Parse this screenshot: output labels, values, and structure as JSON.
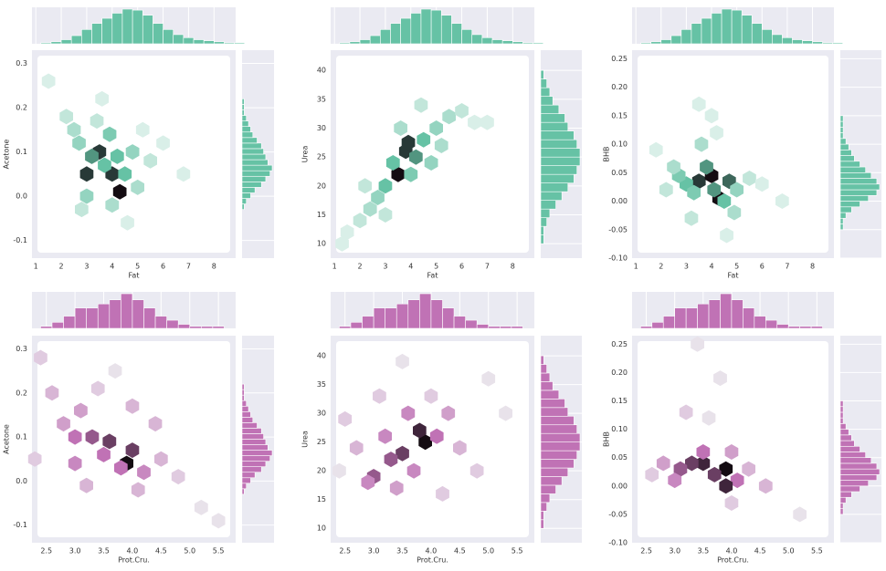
{
  "chart_data": [
    {
      "type": "hexbin",
      "xlabel": "Fat",
      "ylabel": "Acetone",
      "color": "#66c2a5",
      "xlim": [
        0.85,
        8.85
      ],
      "ylim": [
        -0.14,
        0.33
      ],
      "xticks": [
        1,
        2,
        3,
        4,
        5,
        6,
        7,
        8
      ],
      "yticks": [
        -0.1,
        {
          "value": 0,
          "label": "0.0"
        },
        0.1,
        0.2,
        0.3
      ],
      "hexbins": {
        "x": [
          3.0,
          3.5,
          4.0,
          4.3,
          3.2,
          3.7,
          4.5,
          2.7,
          3.9,
          4.2,
          2.5,
          3.0,
          4.8,
          5.0,
          2.2,
          3.4,
          4.0,
          5.5,
          6.0,
          1.5,
          2.8,
          4.6,
          3.6,
          5.2,
          6.8
        ],
        "y": [
          0.05,
          0.1,
          0.05,
          0.01,
          0.09,
          0.07,
          0.05,
          0.12,
          0.14,
          0.09,
          0.15,
          0.0,
          0.1,
          0.02,
          0.18,
          0.17,
          -0.02,
          0.08,
          0.12,
          0.26,
          -0.03,
          -0.06,
          0.22,
          0.15,
          0.05
        ],
        "counts": [
          9,
          9,
          9,
          10,
          7,
          6,
          6,
          4,
          5,
          6,
          3,
          4,
          4,
          3,
          2,
          2,
          3,
          2,
          1,
          1,
          2,
          1,
          1,
          1,
          1
        ]
      },
      "xhist": {
        "bins": [
          1.2,
          1.6,
          2.0,
          2.4,
          2.8,
          3.2,
          3.6,
          4.0,
          4.4,
          4.8,
          5.2,
          5.6,
          6.0,
          6.4,
          6.8,
          7.2,
          7.6,
          8.0,
          8.4,
          8.8,
          9.2
        ],
        "counts": [
          1,
          2,
          4,
          8,
          14,
          20,
          25,
          30,
          34,
          33,
          28,
          20,
          14,
          9,
          6,
          4,
          3,
          2,
          1,
          1
        ]
      },
      "yhist": {
        "bins": [
          -0.03,
          -0.0175,
          -0.005,
          0.0075,
          0.02,
          0.0325,
          0.045,
          0.0575,
          0.07,
          0.0825,
          0.095,
          0.1075,
          0.12,
          0.1325,
          0.145,
          0.1575,
          0.17,
          0.1825,
          0.195,
          0.2075,
          0.22
        ],
        "counts": [
          1,
          2,
          4,
          6,
          9,
          11,
          13,
          14,
          12,
          11,
          10,
          9,
          7,
          5,
          4,
          3,
          2,
          1,
          1,
          1
        ]
      }
    },
    {
      "type": "hexbin",
      "xlabel": "Fat",
      "ylabel": "Urea",
      "color": "#66c2a5",
      "xlim": [
        0.85,
        8.85
      ],
      "ylim": [
        7.5,
        43.5
      ],
      "xticks": [
        1,
        2,
        3,
        4,
        5,
        6,
        7,
        8
      ],
      "yticks": [
        10,
        15,
        20,
        25,
        30,
        35,
        40
      ],
      "hexbins": {
        "x": [
          3.5,
          3.8,
          3.9,
          4.2,
          3.0,
          4.5,
          3.3,
          2.7,
          4.0,
          5.0,
          2.4,
          5.5,
          2.0,
          6.0,
          3.6,
          4.8,
          1.5,
          6.5,
          4.4,
          3.0,
          2.2,
          5.2,
          7.0,
          1.3
        ],
        "y": [
          22,
          26,
          27.5,
          25,
          20,
          28,
          24,
          18,
          22,
          30,
          16,
          32,
          14,
          33,
          30,
          24,
          12,
          31,
          34,
          15,
          20,
          27,
          31,
          10
        ],
        "counts": [
          10,
          9,
          9,
          7,
          6,
          6,
          6,
          4,
          5,
          4,
          3,
          3,
          2,
          2,
          3,
          4,
          1,
          1,
          2,
          2,
          2,
          3,
          1,
          1
        ]
      },
      "xhist": {
        "bins": [
          1.2,
          1.6,
          2.0,
          2.4,
          2.8,
          3.2,
          3.6,
          4.0,
          4.4,
          4.8,
          5.2,
          5.6,
          6.0,
          6.4,
          6.8,
          7.2,
          7.6,
          8.0,
          8.4,
          8.8,
          9.2
        ],
        "counts": [
          1,
          2,
          4,
          8,
          14,
          20,
          25,
          30,
          34,
          33,
          28,
          20,
          14,
          9,
          6,
          4,
          3,
          2,
          1,
          1
        ]
      },
      "yhist": {
        "bins": [
          10,
          11.5,
          13,
          14.5,
          16,
          17.5,
          19,
          20.5,
          22,
          23.5,
          25,
          26.5,
          28,
          29.5,
          31,
          32.5,
          34,
          35.5,
          37,
          38.5,
          40
        ],
        "counts": [
          1,
          1,
          2,
          3,
          5,
          7,
          9,
          11,
          12,
          13,
          13,
          12,
          11,
          9,
          8,
          6,
          4,
          3,
          2,
          1
        ]
      }
    },
    {
      "type": "hexbin",
      "xlabel": "Fat",
      "ylabel": "BHB",
      "color": "#66c2a5",
      "xlim": [
        0.85,
        8.85
      ],
      "ylim": [
        -0.1,
        0.265
      ],
      "xticks": [
        1,
        2,
        3,
        4,
        5,
        6,
        7,
        8
      ],
      "yticks": [
        {
          "value": -0.1,
          "label": "-0.10"
        },
        -0.05,
        {
          "value": 0,
          "label": "0.00"
        },
        0.05,
        {
          "value": 0.1,
          "label": "0.10"
        },
        0.15,
        {
          "value": 0.2,
          "label": "0.20"
        },
        0.25
      ],
      "hexbins": {
        "x": [
          3.5,
          4.0,
          4.3,
          4.7,
          3.0,
          3.8,
          4.5,
          2.7,
          4.1,
          3.3,
          5.0,
          2.5,
          3.6,
          4.9,
          2.2,
          5.5,
          3.2,
          4.0,
          6.0,
          1.8,
          3.5,
          4.2,
          6.8,
          4.6
        ],
        "y": [
          0.035,
          0.045,
          0.005,
          0.035,
          0.03,
          0.06,
          0.0,
          0.045,
          0.02,
          0.015,
          0.02,
          0.06,
          0.1,
          -0.02,
          0.02,
          0.04,
          -0.03,
          0.15,
          0.03,
          0.09,
          0.17,
          0.12,
          0.0,
          -0.06
        ],
        "counts": [
          9,
          10,
          10,
          8,
          6,
          7,
          6,
          5,
          7,
          5,
          4,
          3,
          3,
          3,
          2,
          2,
          2,
          1,
          1,
          1,
          1,
          1,
          1,
          1
        ]
      },
      "xhist": {
        "bins": [
          1.2,
          1.6,
          2.0,
          2.4,
          2.8,
          3.2,
          3.6,
          4.0,
          4.4,
          4.8,
          5.2,
          5.6,
          6.0,
          6.4,
          6.8,
          7.2,
          7.6,
          8.0,
          8.4,
          8.8,
          9.2
        ],
        "counts": [
          1,
          2,
          4,
          8,
          14,
          20,
          25,
          30,
          34,
          33,
          28,
          20,
          14,
          9,
          6,
          4,
          3,
          2,
          1,
          1
        ]
      },
      "yhist": {
        "bins": [
          -0.05,
          -0.04,
          -0.03,
          -0.02,
          -0.01,
          0,
          0.01,
          0.02,
          0.03,
          0.04,
          0.05,
          0.06,
          0.07,
          0.08,
          0.09,
          0.1,
          0.11,
          0.12,
          0.13,
          0.14,
          0.15
        ],
        "counts": [
          1,
          1,
          2,
          4,
          7,
          10,
          13,
          14,
          13,
          11,
          9,
          7,
          5,
          4,
          3,
          2,
          1,
          1,
          1,
          1
        ]
      }
    },
    {
      "type": "hexbin",
      "xlabel": "Prot.Cru.",
      "ylabel": "Acetone",
      "color": "#c072b5",
      "xlim": [
        2.25,
        5.8
      ],
      "ylim": [
        -0.14,
        0.33
      ],
      "xticks": [
        2.5,
        {
          "value": 3,
          "label": "3.0"
        },
        3.5,
        {
          "value": 4,
          "label": "4.0"
        },
        4.5,
        {
          "value": 5,
          "label": "5.0"
        },
        5.5
      ],
      "yticks": [
        -0.1,
        {
          "value": 0,
          "label": "0.0"
        },
        0.1,
        0.2,
        0.3
      ],
      "hexbins": {
        "x": [
          3.9,
          4.0,
          3.6,
          3.3,
          3.0,
          3.5,
          3.8,
          2.8,
          4.2,
          3.1,
          4.5,
          2.6,
          3.4,
          4.1,
          2.4,
          4.8,
          3.7,
          5.2,
          5.5,
          2.3,
          3.2,
          4.4,
          3.0,
          4.0
        ],
        "y": [
          0.04,
          0.07,
          0.09,
          0.1,
          0.1,
          0.06,
          0.03,
          0.13,
          0.02,
          0.16,
          0.05,
          0.2,
          0.21,
          -0.02,
          0.28,
          0.01,
          0.25,
          -0.06,
          -0.09,
          0.05,
          -0.01,
          0.13,
          0.04,
          0.17
        ],
        "counts": [
          10,
          8,
          8,
          7,
          6,
          6,
          6,
          4,
          5,
          4,
          3,
          3,
          2,
          3,
          2,
          2,
          1,
          1,
          1,
          2,
          3,
          3,
          5,
          3
        ]
      },
      "xhist": {
        "bins": [
          2.4,
          2.6,
          2.8,
          3.0,
          3.2,
          3.4,
          3.6,
          3.8,
          4.0,
          4.2,
          4.4,
          4.6,
          4.8,
          5.0,
          5.2,
          5.4,
          5.6
        ],
        "counts": [
          1,
          3,
          6,
          10,
          10,
          12,
          14,
          17,
          14,
          10,
          6,
          4,
          2,
          1,
          1,
          1
        ]
      },
      "yhist": {
        "bins": [
          -0.03,
          -0.0175,
          -0.005,
          0.0075,
          0.02,
          0.0325,
          0.045,
          0.0575,
          0.07,
          0.0825,
          0.095,
          0.1075,
          0.12,
          0.1325,
          0.145,
          0.1575,
          0.17,
          0.1825,
          0.195,
          0.2075,
          0.22
        ],
        "counts": [
          1,
          2,
          4,
          6,
          9,
          11,
          13,
          14,
          12,
          11,
          10,
          9,
          7,
          5,
          4,
          3,
          2,
          1,
          1,
          1
        ]
      }
    },
    {
      "type": "hexbin",
      "xlabel": "Prot.Cru.",
      "ylabel": "Urea",
      "color": "#c072b5",
      "xlim": [
        2.25,
        5.8
      ],
      "ylim": [
        7.5,
        43.5
      ],
      "xticks": [
        2.5,
        {
          "value": 3,
          "label": "3.0"
        },
        3.5,
        {
          "value": 4,
          "label": "4.0"
        },
        4.5,
        {
          "value": 5,
          "label": "5.0"
        },
        5.5
      ],
      "yticks": [
        10,
        15,
        20,
        25,
        30,
        35,
        40
      ],
      "hexbins": {
        "x": [
          3.9,
          3.8,
          3.5,
          3.3,
          3.0,
          4.1,
          3.6,
          3.2,
          4.3,
          2.9,
          3.7,
          2.7,
          4.5,
          3.4,
          4.0,
          2.5,
          4.8,
          3.1,
          5.0,
          2.4,
          4.2,
          3.5,
          5.3
        ],
        "y": [
          25,
          27,
          23,
          22,
          19,
          26,
          30,
          26,
          30,
          18,
          20,
          24,
          24,
          17,
          33,
          29,
          20,
          33,
          36,
          20,
          16,
          39,
          30
        ],
        "counts": [
          10,
          9,
          8,
          7,
          7,
          6,
          5,
          5,
          4,
          5,
          5,
          3,
          3,
          4,
          2,
          2,
          2,
          2,
          1,
          1,
          2,
          1,
          1
        ]
      },
      "xhist": {
        "bins": [
          2.4,
          2.6,
          2.8,
          3.0,
          3.2,
          3.4,
          3.6,
          3.8,
          4.0,
          4.2,
          4.4,
          4.6,
          4.8,
          5.0,
          5.2,
          5.4,
          5.6
        ],
        "counts": [
          1,
          3,
          6,
          10,
          10,
          12,
          14,
          17,
          14,
          10,
          6,
          4,
          2,
          1,
          1,
          1
        ]
      },
      "yhist": {
        "bins": [
          10,
          11.5,
          13,
          14.5,
          16,
          17.5,
          19,
          20.5,
          22,
          23.5,
          25,
          26.5,
          28,
          29.5,
          31,
          32.5,
          34,
          35.5,
          37,
          38.5,
          40
        ],
        "counts": [
          1,
          1,
          2,
          3,
          5,
          7,
          9,
          11,
          12,
          13,
          13,
          12,
          11,
          9,
          8,
          6,
          4,
          3,
          2,
          1
        ]
      }
    },
    {
      "type": "hexbin",
      "xlabel": "Prot.Cru.",
      "ylabel": "BHB",
      "color": "#c072b5",
      "xlim": [
        2.25,
        5.8
      ],
      "ylim": [
        -0.1,
        0.265
      ],
      "xticks": [
        2.5,
        {
          "value": 3,
          "label": "3.0"
        },
        3.5,
        {
          "value": 4,
          "label": "4.0"
        },
        4.5,
        {
          "value": 5,
          "label": "5.0"
        },
        5.5
      ],
      "yticks": [
        {
          "value": -0.1,
          "label": "-0.10"
        },
        -0.05,
        {
          "value": 0,
          "label": "0.00"
        },
        0.05,
        {
          "value": 0.1,
          "label": "0.10"
        },
        0.15,
        {
          "value": 0.2,
          "label": "0.20"
        },
        0.25
      ],
      "hexbins": {
        "x": [
          3.5,
          3.9,
          3.3,
          3.7,
          3.1,
          4.1,
          3.5,
          3.9,
          2.8,
          4.3,
          3.0,
          4.0,
          2.6,
          3.2,
          4.6,
          3.6,
          3.8,
          5.2,
          4.0,
          3.4
        ],
        "y": [
          0.04,
          0.03,
          0.04,
          0.02,
          0.03,
          0.01,
          0.06,
          0.0,
          0.04,
          0.03,
          0.01,
          0.06,
          0.02,
          0.13,
          0.0,
          0.12,
          0.19,
          -0.05,
          -0.03,
          0.25
        ],
        "counts": [
          9,
          10,
          8,
          8,
          7,
          6,
          6,
          9,
          4,
          3,
          5,
          4,
          2,
          2,
          3,
          1,
          1,
          1,
          2,
          1
        ]
      },
      "xhist": {
        "bins": [
          2.4,
          2.6,
          2.8,
          3.0,
          3.2,
          3.4,
          3.6,
          3.8,
          4.0,
          4.2,
          4.4,
          4.6,
          4.8,
          5.0,
          5.2,
          5.4,
          5.6
        ],
        "counts": [
          1,
          3,
          6,
          10,
          10,
          12,
          14,
          17,
          14,
          10,
          6,
          4,
          2,
          1,
          1,
          1
        ]
      },
      "yhist": {
        "bins": [
          -0.05,
          -0.04,
          -0.03,
          -0.02,
          -0.01,
          0,
          0.01,
          0.02,
          0.03,
          0.04,
          0.05,
          0.06,
          0.07,
          0.08,
          0.09,
          0.1,
          0.11,
          0.12,
          0.13,
          0.14,
          0.15
        ],
        "counts": [
          1,
          1,
          2,
          4,
          7,
          10,
          13,
          14,
          13,
          11,
          9,
          7,
          5,
          4,
          3,
          2,
          1,
          1,
          1,
          1
        ]
      }
    }
  ]
}
